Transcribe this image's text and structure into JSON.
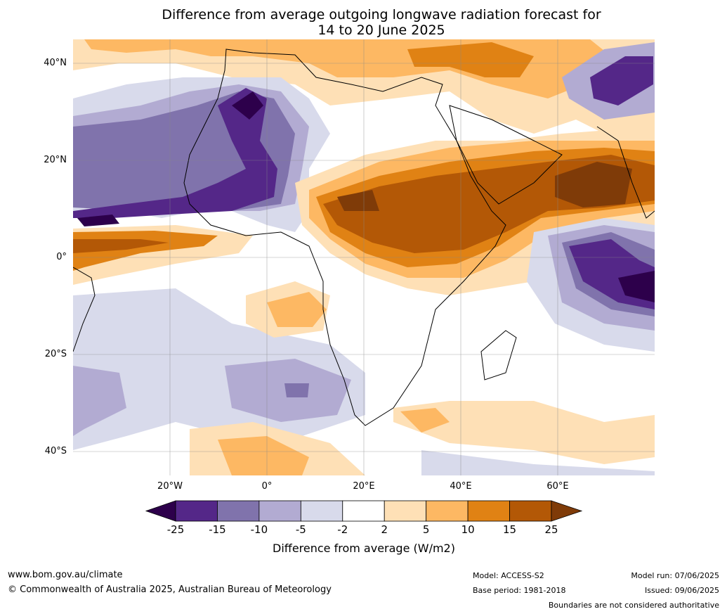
{
  "title": {
    "line1": "Difference from average outgoing longwave radiation forecast for",
    "line2": "14 to 20 June 2025"
  },
  "map": {
    "latitude_labels": [
      "40°N",
      "20°N",
      "0°",
      "20°S",
      "40°S"
    ],
    "longitude_labels": [
      "20°W",
      "0°",
      "20°E",
      "40°E",
      "60°E"
    ]
  },
  "legend": {
    "title": "Difference from average (W/m2)",
    "ticks": [
      "-25",
      "-15",
      "-10",
      "-5",
      "-2",
      "2",
      "5",
      "10",
      "15",
      "25"
    ],
    "colors": [
      "#2d004b",
      "#542788",
      "#8073ac",
      "#b2abd2",
      "#d8daeb",
      "#ffffff",
      "#fee0b6",
      "#fdb863",
      "#e08214",
      "#b35806",
      "#7f3b08"
    ]
  },
  "footer": {
    "website": "www.bom.gov.au/climate",
    "copyright": "© Commonwealth of Australia 2025, Australian Bureau of Meteorology",
    "model": "Model: ACCESS-S2",
    "base_period": "Base period: 1981-2018",
    "model_run": "Model run: 07/06/2025",
    "issued": "Issued: 09/06/2025",
    "disclaimer": "Boundaries are not considered authoritative"
  }
}
